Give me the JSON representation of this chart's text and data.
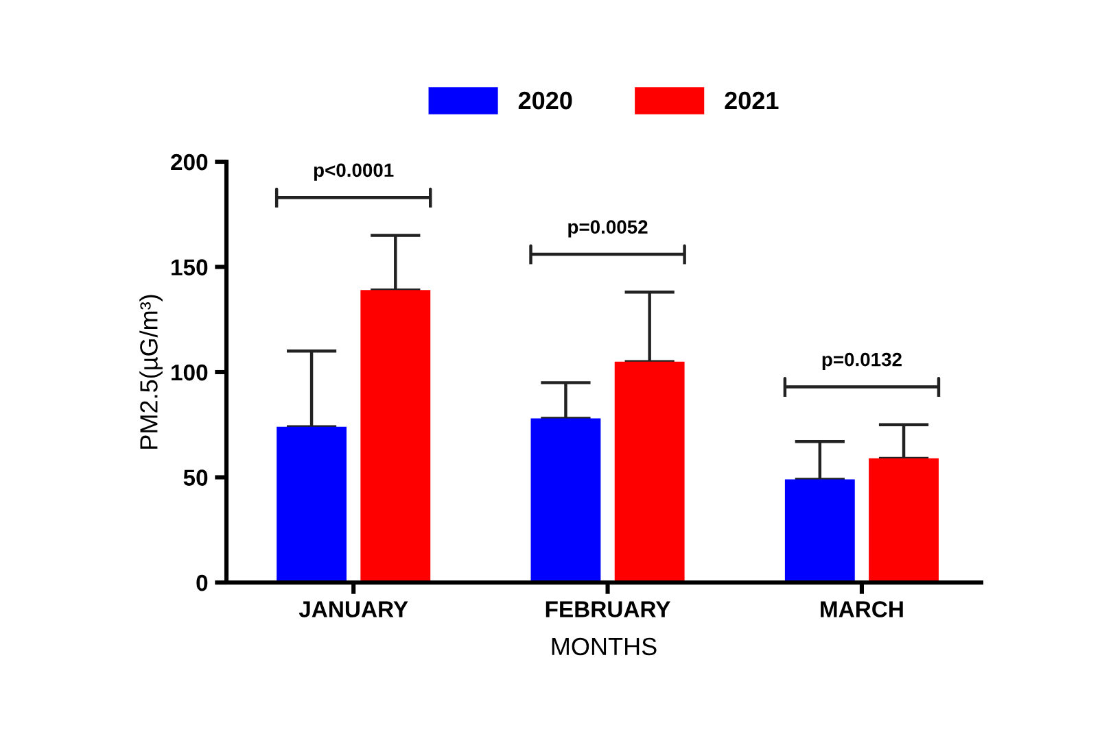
{
  "chart_data": {
    "type": "bar",
    "categories": [
      "JANUARY",
      "FEBRUARY",
      "MARCH"
    ],
    "series": [
      {
        "name": "2020",
        "color": "#0000ff",
        "values": [
          74,
          78,
          49
        ],
        "errors": [
          [
            74,
            110
          ],
          [
            78,
            95
          ],
          [
            49,
            67
          ]
        ]
      },
      {
        "name": "2021",
        "color": "#ff0000",
        "values": [
          139,
          105,
          59
        ],
        "errors": [
          [
            139,
            165
          ],
          [
            105,
            138
          ],
          [
            59,
            75
          ]
        ]
      }
    ],
    "xlabel": "MONTHS",
    "ylabel": "PM2.5(µG/m³)",
    "ylim": [
      0,
      200
    ],
    "yticks": [
      0,
      50,
      100,
      150,
      200
    ],
    "annotations": [
      "p<0.0001",
      "p=0.0052",
      "p=0.0132"
    ],
    "legend": "top",
    "grid": false
  }
}
